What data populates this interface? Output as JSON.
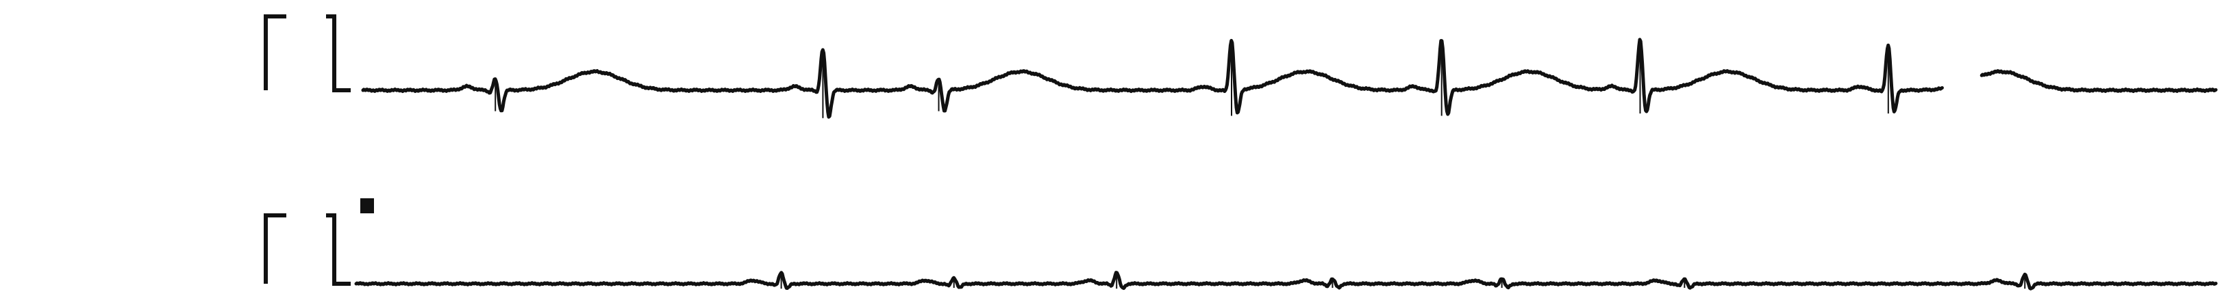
{
  "chart_data": {
    "type": "line",
    "title": "",
    "xlabel": "",
    "ylabel": "",
    "grid": false,
    "legend": "none",
    "colors": {
      "trace": "#111111",
      "background": "#ffffff"
    },
    "strips": [
      {
        "name": "",
        "calibration_pulse": true,
        "xlim": [
          0,
          11.2
        ],
        "ylim": [
          -0.7,
          1.4
        ],
        "qrs_times": [
          0.8,
          2.78,
          3.48,
          5.25,
          6.52,
          7.72,
          9.22
        ],
        "r_amplitude": [
          0.25,
          0.9,
          0.25,
          1.1,
          1.1,
          1.1,
          1.0
        ],
        "s_amplitude": [
          -0.45,
          -0.6,
          -0.45,
          -0.55,
          -0.55,
          -0.5,
          -0.5
        ],
        "t_times": [
          1.4,
          3.98,
          5.7,
          7.05,
          8.25,
          9.9
        ],
        "t_amplitude": 0.4,
        "gaps": [
          [
            9.55,
            9.78
          ]
        ]
      },
      {
        "name": "",
        "calibration_pulse": true,
        "marker": "#",
        "xlim": [
          0,
          11.2
        ],
        "ylim": [
          -0.7,
          1.4
        ],
        "qrs_times": [
          2.56,
          3.6,
          4.58,
          5.88,
          6.9,
          8.0,
          10.05
        ],
        "r_amplitude": [
          0.28,
          0.15,
          0.28,
          0.12,
          0.14,
          0.12,
          0.22
        ],
        "s_amplitude": [
          -0.12,
          -0.1,
          -0.12,
          -0.1,
          -0.1,
          -0.1,
          -0.12
        ],
        "t_times": [],
        "t_amplitude": 0.06,
        "gaps": []
      }
    ]
  }
}
